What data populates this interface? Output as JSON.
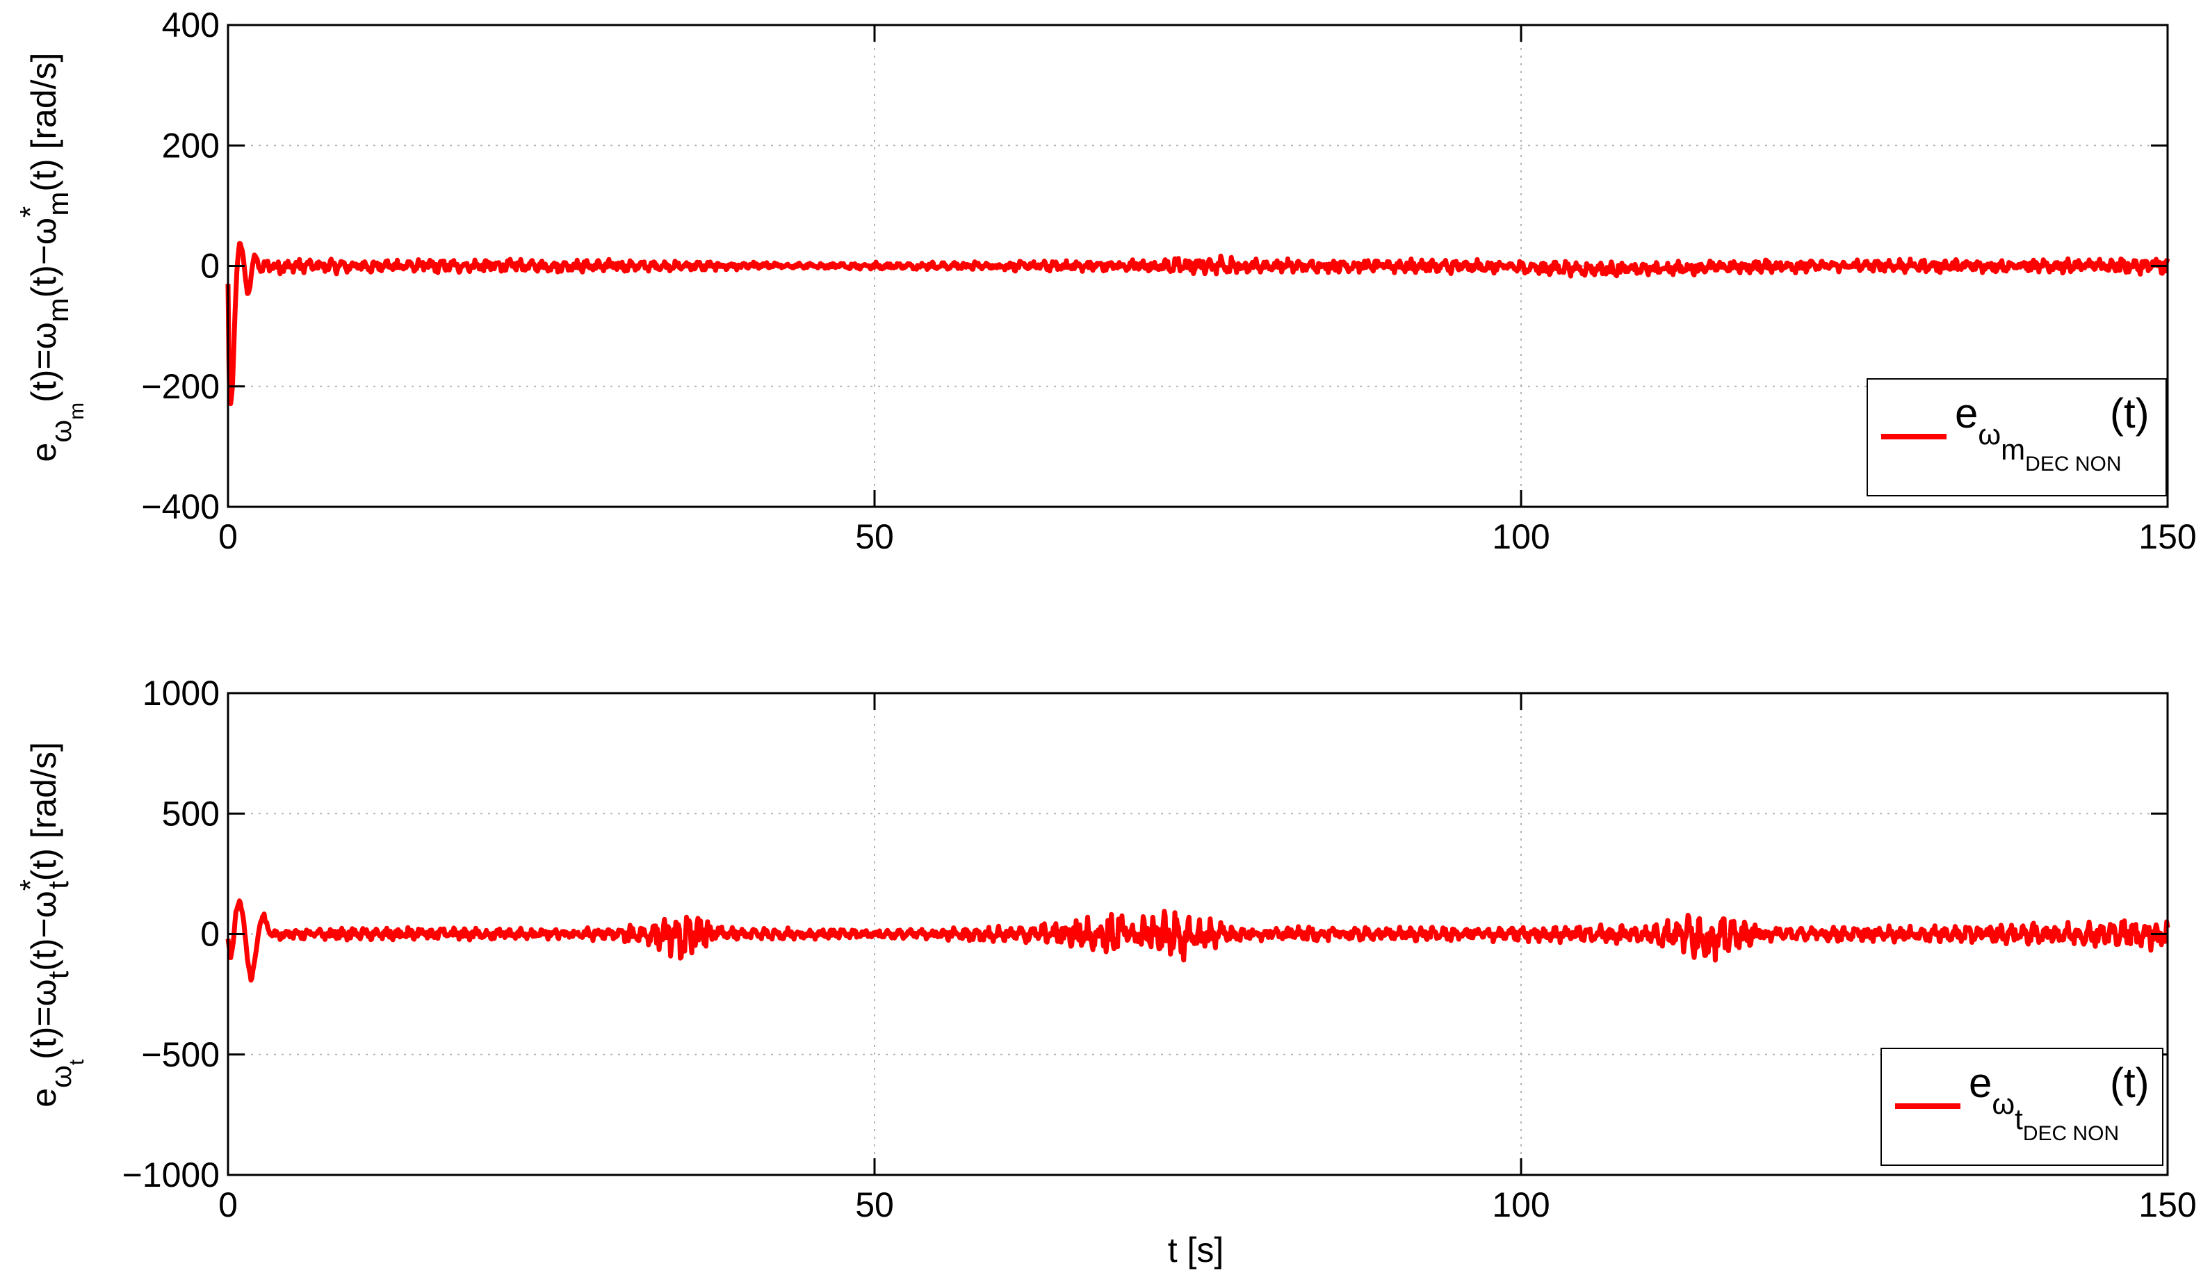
{
  "colors": {
    "series": "#ff0000",
    "grid": "#b4b4b4",
    "axis": "#000000",
    "background": "#ffffff"
  },
  "chart_data": [
    {
      "type": "line",
      "panel": "top",
      "title": "",
      "xlabel": "",
      "ylabel_parts": {
        "e": "e",
        "omega": "ω",
        "m": "m",
        "eq": "(t)=ω",
        "m2": "m",
        "mid": "(t)−ω",
        "star": "*",
        "m3": "m",
        "end": "(t) [rad/s]"
      },
      "xlim": [
        0,
        150
      ],
      "ylim": [
        -400,
        400
      ],
      "x_ticks": [
        "0",
        "50",
        "100",
        "150"
      ],
      "y_ticks": [
        "−400",
        "−200",
        "0",
        "200",
        "400"
      ],
      "x_tick_values": [
        0,
        50,
        100,
        150
      ],
      "y_tick_values": [
        -400,
        -200,
        0,
        200,
        400
      ],
      "grid": true,
      "legend_position": "bottom-right",
      "series": [
        {
          "legend": {
            "e": "e",
            "omega": "ω",
            "sub": "m",
            "subsub": "DEC NON",
            "t": "(t)"
          },
          "x": [
            0,
            0.1,
            0.2,
            0.35,
            0.5,
            0.7,
            0.9,
            1.1,
            1.3,
            1.5,
            1.7,
            1.9,
            2.1,
            2.3,
            2.5,
            2.7,
            3.0,
            3.3,
            3.6,
            4,
            5,
            8,
            12,
            20,
            30,
            35,
            37,
            40,
            50,
            57,
            60,
            70,
            75,
            80,
            85,
            90,
            100,
            105,
            110,
            115,
            120,
            130,
            140,
            145,
            150
          ],
          "y": [
            -30,
            -220,
            -230,
            -200,
            -100,
            0,
            40,
            25,
            -10,
            -45,
            -35,
            0,
            20,
            10,
            -10,
            -5,
            5,
            0,
            -3,
            0,
            0,
            0,
            0,
            0,
            0,
            0,
            0,
            0,
            0,
            0,
            0,
            0,
            0,
            0,
            0,
            0,
            -2,
            -5,
            -5,
            -2,
            0,
            0,
            0,
            0,
            0
          ],
          "noise_amplitude_by_x": [
            [
              0,
              0
            ],
            [
              4,
              10
            ],
            [
              30,
              8
            ],
            [
              45,
              4
            ],
            [
              57,
              6
            ],
            [
              70,
              8
            ],
            [
              76,
              14
            ],
            [
              80,
              9
            ],
            [
              100,
              10
            ],
            [
              115,
              9
            ],
            [
              140,
              9
            ],
            [
              150,
              12
            ]
          ]
        }
      ]
    },
    {
      "type": "line",
      "panel": "bottom",
      "title": "",
      "xlabel": "t [s]",
      "ylabel_parts": {
        "e": "e",
        "omega": "ω",
        "t": "t",
        "eq": "(t)=ω",
        "t2": "t",
        "mid": "(t)−ω",
        "star": "*",
        "t3": "t",
        "end": "(t) [rad/s]"
      },
      "xlim": [
        0,
        150
      ],
      "ylim": [
        -1000,
        1000
      ],
      "x_ticks": [
        "0",
        "50",
        "100",
        "150"
      ],
      "y_ticks": [
        "−1000",
        "−500",
        "0",
        "500",
        "1000"
      ],
      "x_tick_values": [
        0,
        50,
        100,
        150
      ],
      "y_tick_values": [
        -1000,
        -500,
        0,
        500,
        1000
      ],
      "grid": true,
      "legend_position": "bottom-right",
      "series": [
        {
          "legend": {
            "e": "e",
            "omega": "ω",
            "sub": "t",
            "subsub": "DEC NON",
            "t": "(t)"
          },
          "x": [
            0,
            0.2,
            0.4,
            0.6,
            0.9,
            1.2,
            1.5,
            1.8,
            2.1,
            2.4,
            2.7,
            3.0,
            3.4,
            3.8,
            4.5,
            10,
            16,
            20,
            30,
            34,
            35.5,
            36,
            40,
            50,
            60,
            66,
            70,
            73,
            74.5,
            76,
            80,
            90,
            100,
            105,
            110,
            113,
            115,
            117,
            120,
            130,
            140,
            145,
            150
          ],
          "y": [
            -20,
            -100,
            -40,
            90,
            140,
            60,
            -100,
            -200,
            -100,
            30,
            80,
            40,
            -10,
            0,
            0,
            0,
            0,
            0,
            0,
            0,
            -30,
            0,
            0,
            0,
            0,
            0,
            0,
            0,
            -20,
            0,
            0,
            0,
            0,
            0,
            0,
            0,
            -20,
            0,
            0,
            0,
            0,
            0,
            0
          ],
          "noise_amplitude_by_x": [
            [
              0,
              0
            ],
            [
              4,
              18
            ],
            [
              14,
              22
            ],
            [
              20,
              20
            ],
            [
              30,
              20
            ],
            [
              33,
              50
            ],
            [
              36,
              85
            ],
            [
              38,
              25
            ],
            [
              45,
              18
            ],
            [
              55,
              18
            ],
            [
              62,
              30
            ],
            [
              66,
              55
            ],
            [
              70,
              80
            ],
            [
              73,
              95
            ],
            [
              75,
              60
            ],
            [
              78,
              25
            ],
            [
              90,
              22
            ],
            [
              100,
              25
            ],
            [
              110,
              35
            ],
            [
              113,
              70
            ],
            [
              115,
              95
            ],
            [
              117,
              40
            ],
            [
              120,
              25
            ],
            [
              130,
              25
            ],
            [
              140,
              35
            ],
            [
              145,
              45
            ],
            [
              150,
              55
            ]
          ]
        }
      ]
    }
  ]
}
